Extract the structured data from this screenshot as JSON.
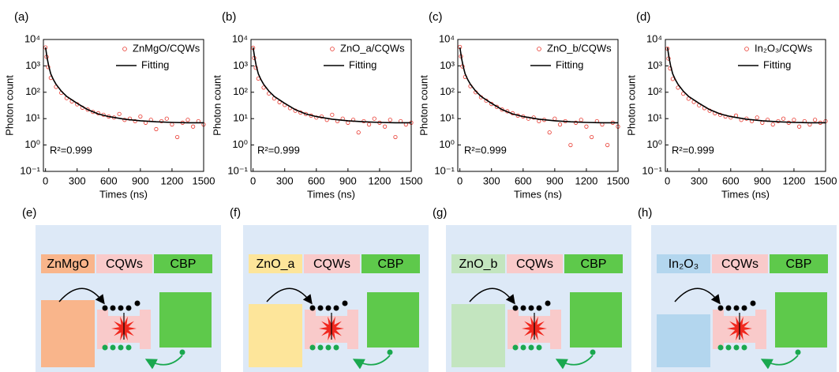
{
  "chart_data": [
    {
      "type": "scatter",
      "panel_label": "(a)",
      "xlabel": "Times (ns)",
      "ylabel": "Photon count",
      "annotation": "R²=0.999",
      "log_y": true,
      "xlim": [
        -20,
        1500
      ],
      "ylim": [
        0.1,
        10000
      ],
      "xticks": [
        0,
        300,
        600,
        900,
        1200,
        1500
      ],
      "yticks": [
        {
          "value": 0.1,
          "label": "10⁻¹"
        },
        {
          "value": 1,
          "label": "10⁰"
        },
        {
          "value": 10,
          "label": "10¹"
        },
        {
          "value": 100,
          "label": "10²"
        },
        {
          "value": 1000,
          "label": "10³"
        },
        {
          "value": 10000,
          "label": "10⁴"
        }
      ],
      "series": [
        {
          "name": "ZnMgO/CQWs",
          "color": "#e8352b",
          "marker": "open-circle",
          "x": [
            0,
            10,
            25,
            50,
            100,
            150,
            200,
            250,
            300,
            350,
            400,
            450,
            500,
            550,
            600,
            650,
            700,
            750,
            800,
            850,
            900,
            950,
            1000,
            1050,
            1100,
            1150,
            1200,
            1250,
            1300,
            1350,
            1400,
            1450,
            1500
          ],
          "values": [
            5000,
            2200,
            900,
            350,
            160,
            95,
            60,
            45,
            35,
            26,
            22,
            18,
            16,
            14,
            12,
            11,
            15,
            9,
            10,
            8,
            12,
            7,
            9,
            4,
            8,
            10,
            6,
            2,
            7,
            9,
            5,
            8,
            6
          ]
        },
        {
          "name": "Fitting",
          "color": "#000000",
          "marker": "line",
          "x": [
            0,
            15,
            30,
            50,
            75,
            100,
            150,
            200,
            300,
            400,
            500,
            600,
            750,
            900,
            1050,
            1200,
            1350,
            1500
          ],
          "values": [
            5000,
            2000,
            1000,
            500,
            300,
            200,
            110,
            70,
            38,
            22,
            15,
            12,
            9.5,
            8.3,
            7.6,
            7.2,
            7,
            7
          ]
        }
      ]
    },
    {
      "type": "scatter",
      "panel_label": "(b)",
      "xlabel": "Times (ns)",
      "ylabel": "Photon count",
      "annotation": "R²=0.999",
      "log_y": true,
      "xlim": [
        -20,
        1500
      ],
      "ylim": [
        0.1,
        10000
      ],
      "xticks": [
        0,
        300,
        600,
        900,
        1200,
        1500
      ],
      "yticks": [
        {
          "value": 0.1,
          "label": "10⁻¹"
        },
        {
          "value": 1,
          "label": "10⁰"
        },
        {
          "value": 10,
          "label": "10¹"
        },
        {
          "value": 100,
          "label": "10²"
        },
        {
          "value": 1000,
          "label": "10³"
        },
        {
          "value": 10000,
          "label": "10⁴"
        }
      ],
      "series": [
        {
          "name": "ZnO_a/CQWs",
          "color": "#e8352b",
          "marker": "open-circle",
          "x": [
            0,
            10,
            25,
            50,
            100,
            150,
            200,
            250,
            300,
            350,
            400,
            450,
            500,
            550,
            600,
            650,
            700,
            750,
            800,
            850,
            900,
            950,
            1000,
            1050,
            1100,
            1150,
            1200,
            1250,
            1300,
            1350,
            1400,
            1450,
            1500
          ],
          "values": [
            4800,
            2000,
            850,
            330,
            150,
            90,
            58,
            42,
            33,
            25,
            20,
            17,
            15,
            13,
            11,
            12,
            9,
            14,
            8,
            10,
            7,
            9,
            3,
            8,
            6,
            10,
            7,
            5,
            9,
            2,
            8,
            6,
            7
          ]
        },
        {
          "name": "Fitting",
          "color": "#000000",
          "marker": "line",
          "x": [
            0,
            15,
            30,
            50,
            75,
            100,
            150,
            200,
            300,
            400,
            500,
            600,
            750,
            900,
            1050,
            1200,
            1350,
            1500
          ],
          "values": [
            5000,
            2000,
            1000,
            500,
            300,
            200,
            110,
            70,
            38,
            22,
            15,
            12,
            9.5,
            8.3,
            7.6,
            7.2,
            7,
            7
          ]
        }
      ]
    },
    {
      "type": "scatter",
      "panel_label": "(c)",
      "xlabel": "Times (ns)",
      "ylabel": "Photon count",
      "annotation": "R²=0.999",
      "log_y": true,
      "xlim": [
        -20,
        1500
      ],
      "ylim": [
        0.1,
        10000
      ],
      "xticks": [
        0,
        300,
        600,
        900,
        1200,
        1500
      ],
      "yticks": [
        {
          "value": 0.1,
          "label": "10⁻¹"
        },
        {
          "value": 1,
          "label": "10⁰"
        },
        {
          "value": 10,
          "label": "10¹"
        },
        {
          "value": 100,
          "label": "10²"
        },
        {
          "value": 1000,
          "label": "10³"
        },
        {
          "value": 10000,
          "label": "10⁴"
        }
      ],
      "series": [
        {
          "name": "ZnO_b/CQWs",
          "color": "#e8352b",
          "marker": "open-circle",
          "x": [
            0,
            10,
            25,
            50,
            100,
            150,
            200,
            250,
            300,
            350,
            400,
            450,
            500,
            550,
            600,
            650,
            700,
            750,
            800,
            850,
            900,
            950,
            1000,
            1050,
            1100,
            1150,
            1200,
            1250,
            1300,
            1350,
            1400,
            1450,
            1500
          ],
          "values": [
            5200,
            2300,
            950,
            380,
            170,
            100,
            65,
            48,
            36,
            28,
            22,
            19,
            16,
            13,
            12,
            10,
            11,
            8,
            9,
            3,
            10,
            6,
            8,
            1,
            7,
            9,
            5,
            2,
            8,
            6,
            1,
            7,
            5
          ]
        },
        {
          "name": "Fitting",
          "color": "#000000",
          "marker": "line",
          "x": [
            0,
            15,
            30,
            50,
            75,
            100,
            150,
            200,
            300,
            400,
            500,
            600,
            750,
            900,
            1050,
            1200,
            1350,
            1500
          ],
          "values": [
            5000,
            2000,
            1000,
            500,
            300,
            200,
            110,
            70,
            38,
            22,
            15,
            12,
            9.5,
            8.3,
            7.6,
            7.2,
            7,
            7
          ]
        }
      ]
    },
    {
      "type": "scatter",
      "panel_label": "(d)",
      "xlabel": "Times (ns)",
      "ylabel": "Photon count",
      "annotation": "R²=0.999",
      "log_y": true,
      "xlim": [
        -20,
        1500
      ],
      "ylim": [
        0.1,
        10000
      ],
      "xticks": [
        0,
        300,
        600,
        900,
        1200,
        1500
      ],
      "yticks": [
        {
          "value": 0.1,
          "label": "10⁻¹"
        },
        {
          "value": 1,
          "label": "10⁰"
        },
        {
          "value": 10,
          "label": "10¹"
        },
        {
          "value": 100,
          "label": "10²"
        },
        {
          "value": 1000,
          "label": "10³"
        },
        {
          "value": 10000,
          "label": "10⁴"
        }
      ],
      "series": [
        {
          "name": "In₂O₃/CQWs",
          "color": "#e8352b",
          "marker": "open-circle",
          "x": [
            0,
            10,
            25,
            50,
            100,
            150,
            200,
            250,
            300,
            350,
            400,
            450,
            500,
            550,
            600,
            650,
            700,
            750,
            800,
            850,
            900,
            950,
            1000,
            1050,
            1100,
            1150,
            1200,
            1250,
            1300,
            1350,
            1400,
            1450,
            1500
          ],
          "values": [
            4500,
            1900,
            800,
            320,
            150,
            88,
            57,
            43,
            32,
            25,
            20,
            16,
            14,
            12,
            11,
            13,
            9,
            10,
            8,
            11,
            7,
            9,
            6,
            8,
            10,
            7,
            9,
            5,
            8,
            6,
            9,
            7,
            8
          ]
        },
        {
          "name": "Fitting",
          "color": "#000000",
          "marker": "line",
          "x": [
            0,
            15,
            30,
            50,
            75,
            100,
            150,
            200,
            300,
            400,
            500,
            600,
            750,
            900,
            1050,
            1200,
            1350,
            1500
          ],
          "values": [
            5000,
            2000,
            1000,
            500,
            300,
            200,
            110,
            70,
            38,
            22,
            15,
            12,
            9.5,
            8.3,
            7.6,
            7.2,
            7,
            7
          ]
        }
      ]
    }
  ],
  "diagrams": [
    {
      "label": "(e)",
      "layers": [
        "ZnMgO",
        "CQWs",
        "CBP"
      ]
    },
    {
      "label": "(f)",
      "layers": [
        "ZnO_a",
        "CQWs",
        "CBP"
      ]
    },
    {
      "label": "(g)",
      "layers": [
        "ZnO_b",
        "CQWs",
        "CBP"
      ]
    },
    {
      "label": "(h)",
      "layers": [
        "In₂O₃",
        "CQWs",
        "CBP"
      ]
    }
  ]
}
